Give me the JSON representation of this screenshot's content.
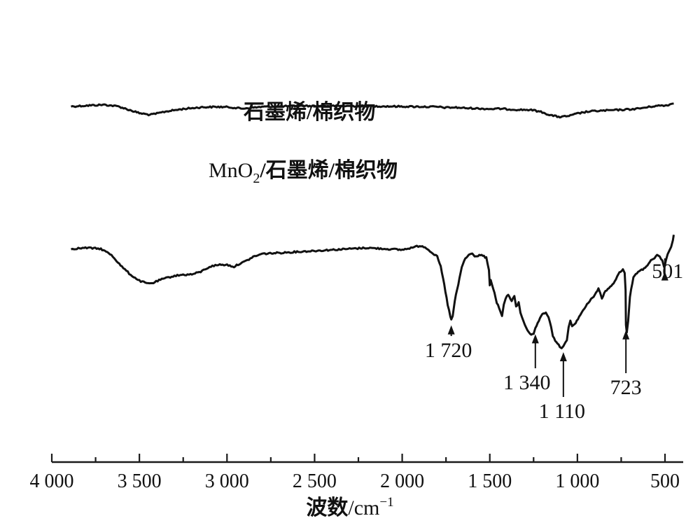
{
  "chart_data": {
    "type": "line",
    "xlabel_main": "波数",
    "xlabel_unit": "/cm",
    "xlabel_sup": "−1",
    "xlim": [
      4000,
      450
    ],
    "x_reversed": true,
    "grid": false,
    "x_ticks": [
      {
        "value": 4000,
        "label": "4 000"
      },
      {
        "value": 3500,
        "label": "3 500"
      },
      {
        "value": 3000,
        "label": "3 000"
      },
      {
        "value": 2500,
        "label": "2 500"
      },
      {
        "value": 2000,
        "label": "2 000"
      },
      {
        "value": 1500,
        "label": "1 500"
      },
      {
        "value": 1000,
        "label": "1 000"
      },
      {
        "value": 500,
        "label": "500"
      }
    ],
    "x_minor_ticks": [
      3750,
      3250,
      2750,
      2250,
      1750,
      1250,
      750
    ],
    "series": [
      {
        "name": "石墨烯/棉织物",
        "x": [
          3890,
          3800,
          3700,
          3620,
          3560,
          3500,
          3440,
          3400,
          3350,
          3250,
          3150,
          3050,
          2980,
          2920,
          2880,
          2800,
          2600,
          2400,
          2250,
          2100,
          1950,
          1800,
          1750,
          1700,
          1640,
          1600,
          1500,
          1440,
          1380,
          1330,
          1280,
          1240,
          1200,
          1160,
          1130,
          1100,
          1080,
          1040,
          1000,
          950,
          900,
          850,
          800,
          750,
          700,
          650,
          600,
          560,
          520,
          500,
          480,
          460,
          450
        ],
        "y": [
          0.9,
          0.91,
          0.92,
          0.9,
          0.86,
          0.82,
          0.8,
          0.815,
          0.84,
          0.87,
          0.89,
          0.895,
          0.89,
          0.875,
          0.88,
          0.895,
          0.905,
          0.905,
          0.905,
          0.902,
          0.898,
          0.895,
          0.885,
          0.888,
          0.88,
          0.878,
          0.87,
          0.872,
          0.865,
          0.86,
          0.86,
          0.85,
          0.83,
          0.8,
          0.785,
          0.775,
          0.778,
          0.79,
          0.815,
          0.835,
          0.845,
          0.85,
          0.855,
          0.86,
          0.865,
          0.875,
          0.89,
          0.905,
          0.91,
          0.91,
          0.92,
          0.93,
          0.935
        ]
      },
      {
        "name": "MnO₂/石墨烯/棉织物",
        "name_formula": "MnO",
        "name_formula_sub": "2",
        "name_rest": "/石墨烯/棉织物",
        "x": [
          3890,
          3800,
          3720,
          3660,
          3600,
          3550,
          3500,
          3450,
          3420,
          3380,
          3300,
          3250,
          3200,
          3150,
          3100,
          3050,
          3000,
          2960,
          2930,
          2900,
          2850,
          2800,
          2700,
          2600,
          2500,
          2400,
          2300,
          2200,
          2100,
          2000,
          1950,
          1900,
          1870,
          1850,
          1800,
          1780,
          1760,
          1740,
          1725,
          1720,
          1712,
          1700,
          1680,
          1660,
          1640,
          1620,
          1600,
          1580,
          1560,
          1540,
          1520,
          1505,
          1500,
          1495,
          1480,
          1460,
          1440,
          1430,
          1420,
          1410,
          1395,
          1375,
          1360,
          1350,
          1335,
          1325,
          1300,
          1270,
          1250,
          1240,
          1220,
          1200,
          1180,
          1165,
          1150,
          1140,
          1120,
          1100,
          1090,
          1080,
          1060,
          1050,
          1040,
          1030,
          1010,
          990,
          960,
          930,
          900,
          880,
          870,
          860,
          840,
          820,
          800,
          780,
          760,
          740,
          730,
          725,
          723,
          718,
          710,
          700,
          680,
          660,
          640,
          620,
          600,
          580,
          560,
          545,
          530,
          515,
          505,
          501,
          495,
          485,
          475,
          465,
          455,
          450
        ],
        "y": [
          0.56,
          0.565,
          0.56,
          0.53,
          0.47,
          0.43,
          0.4,
          0.385,
          0.39,
          0.405,
          0.425,
          0.43,
          0.432,
          0.445,
          0.47,
          0.48,
          0.48,
          0.47,
          0.485,
          0.495,
          0.52,
          0.535,
          0.54,
          0.545,
          0.55,
          0.555,
          0.56,
          0.565,
          0.56,
          0.555,
          0.565,
          0.575,
          0.57,
          0.555,
          0.52,
          0.47,
          0.38,
          0.28,
          0.22,
          0.205,
          0.22,
          0.3,
          0.38,
          0.47,
          0.51,
          0.53,
          0.535,
          0.52,
          0.53,
          0.525,
          0.515,
          0.45,
          0.38,
          0.4,
          0.36,
          0.29,
          0.25,
          0.22,
          0.28,
          0.31,
          0.33,
          0.3,
          0.32,
          0.27,
          0.29,
          0.24,
          0.18,
          0.13,
          0.13,
          0.16,
          0.2,
          0.23,
          0.24,
          0.22,
          0.17,
          0.12,
          0.09,
          0.07,
          0.065,
          0.07,
          0.1,
          0.17,
          0.2,
          0.17,
          0.19,
          0.22,
          0.26,
          0.3,
          0.33,
          0.36,
          0.34,
          0.31,
          0.35,
          0.36,
          0.38,
          0.41,
          0.44,
          0.46,
          0.44,
          0.35,
          0.18,
          0.14,
          0.2,
          0.32,
          0.42,
          0.44,
          0.45,
          0.46,
          0.48,
          0.5,
          0.51,
          0.53,
          0.52,
          0.5,
          0.47,
          0.475,
          0.5,
          0.53,
          0.55,
          0.57,
          0.6,
          0.63
        ]
      }
    ],
    "annotations": [
      {
        "label": "1 720",
        "x": 1720,
        "series": 1,
        "position": "below"
      },
      {
        "label": "1 340",
        "x": 1240,
        "series": 1,
        "position": "below"
      },
      {
        "label": "1 110",
        "x": 1080,
        "series": 1,
        "position": "below"
      },
      {
        "label": "723",
        "x": 723,
        "series": 1,
        "position": "below"
      },
      {
        "label": "501",
        "x": 501,
        "series": 1,
        "position": "above"
      }
    ]
  }
}
